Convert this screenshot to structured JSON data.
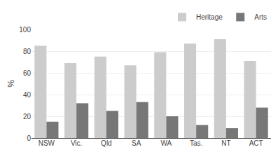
{
  "chart_data": {
    "type": "bar",
    "ylabel": "%",
    "categories": [
      "NSW",
      "Vic.",
      "Qld",
      "SA",
      "WA",
      "Tas.",
      "NT",
      "ACT"
    ],
    "series": [
      {
        "name": "Heritage",
        "color": "#cccccc",
        "values": [
          85,
          69,
          75,
          67,
          79,
          87,
          91,
          71
        ]
      },
      {
        "name": "Arts",
        "color": "#777777",
        "values": [
          15,
          32,
          25,
          33,
          20,
          12,
          9,
          28
        ]
      }
    ],
    "ylim": [
      0,
      100
    ],
    "yticks": [
      0,
      20,
      40,
      60,
      80,
      100
    ],
    "grid": true,
    "legend": "upper right"
  }
}
